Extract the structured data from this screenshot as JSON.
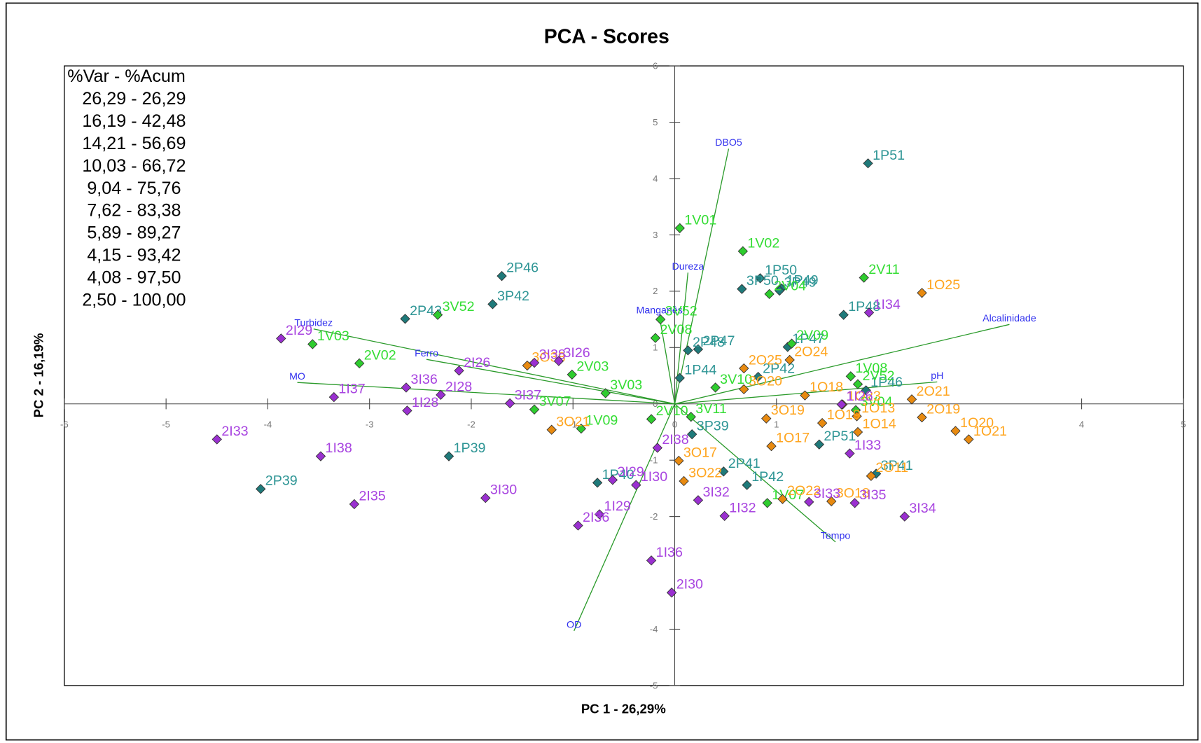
{
  "chart_data": {
    "type": "scatter",
    "title": "PCA - Scores",
    "x_label": "PC 1 - 26,29%",
    "y_label": "PC 2 - 16,19%",
    "xlim": [
      -6,
      5
    ],
    "ylim": [
      -5,
      6
    ],
    "xticks": [
      -6,
      -5,
      -4,
      -3,
      -2,
      -1,
      0,
      1,
      4,
      5
    ],
    "yticks": [
      -5,
      -4,
      -2,
      -1,
      0,
      1,
      2,
      3,
      4,
      5,
      6
    ],
    "variance_table": [
      "%Var - %Acum",
      "26,29 - 26,29",
      "16,19 - 42,48",
      "14,21 - 56,69",
      "10,03 - 66,72",
      "9,04 - 75,76",
      "7,62 - 83,38",
      "5,89 - 89,27",
      "4,15 - 93,42",
      "4,08 - 97,50",
      "2,50 - 100,00"
    ],
    "series": [
      {
        "color": "#1f7a7a",
        "label_color": "#2e9595",
        "labels": [
          "1P51",
          "2P46",
          "3P42",
          "2P43",
          "1P39",
          "2P39",
          "1P49",
          "3P49",
          "1P50",
          "3P50",
          "1P48",
          "2P47",
          "2P48",
          "1P47",
          "2P42",
          "1P44",
          "2P51",
          "3P41",
          "2P41",
          "1P42",
          "3P39",
          "1P40",
          "1P46"
        ],
        "x": [
          1.9,
          -1.7,
          -1.79,
          -2.65,
          -2.22,
          -4.07,
          1.05,
          1.03,
          0.84,
          0.66,
          1.66,
          0.23,
          0.13,
          1.11,
          0.82,
          0.05,
          1.42,
          1.98,
          0.48,
          0.71,
          0.17,
          -0.76,
          1.88
        ],
        "y": [
          4.27,
          2.27,
          1.77,
          1.51,
          -0.93,
          -1.51,
          2.05,
          2.01,
          2.23,
          2.04,
          1.58,
          0.97,
          0.95,
          1.01,
          0.48,
          0.46,
          -0.72,
          -1.24,
          -1.2,
          -1.44,
          -0.54,
          -1.4,
          0.24
        ]
      },
      {
        "color": "#2ecc2e",
        "label_color": "#33dd33",
        "labels": [
          "1V01",
          "1V02",
          "2V11",
          "3V52",
          "1V03",
          "2V02",
          "2V04",
          "3V52",
          "2V08",
          "2V09",
          "1V08",
          "2V52",
          "3V04",
          "2V03",
          "3V03",
          "3V07",
          "1V09",
          "3V11",
          "1V07",
          "3V10",
          "2V10"
        ],
        "x": [
          0.05,
          0.67,
          1.86,
          -2.33,
          -3.56,
          -3.1,
          0.93,
          -0.14,
          -0.19,
          1.15,
          1.73,
          1.8,
          1.78,
          -1.01,
          -0.68,
          -1.38,
          -0.92,
          0.16,
          0.91,
          0.4,
          -0.23
        ],
        "y": [
          3.12,
          2.71,
          2.24,
          1.58,
          1.06,
          0.72,
          1.95,
          1.5,
          1.17,
          1.07,
          0.49,
          0.35,
          -0.11,
          0.52,
          0.19,
          -0.1,
          -0.44,
          -0.23,
          -1.76,
          0.29,
          -0.27
        ]
      },
      {
        "color": "#e88a10",
        "label_color": "#ffa51f",
        "labels": [
          "1O25",
          "2O24",
          "2O25",
          "2O21",
          "2O19",
          "1O20",
          "1O21",
          "1O18",
          "1O23",
          "1O13",
          "1O14",
          "1O19",
          "1O17",
          "3O17",
          "3O22",
          "2O22",
          "3O18",
          "2O11",
          "3O20",
          "3O19",
          "3O21",
          "3O38"
        ],
        "x": [
          2.43,
          1.13,
          0.68,
          2.33,
          2.43,
          2.76,
          2.89,
          1.28,
          1.65,
          1.79,
          1.8,
          1.45,
          0.95,
          0.04,
          0.09,
          1.06,
          1.54,
          1.93,
          0.68,
          0.9,
          -1.21,
          -1.45
        ],
        "y": [
          1.97,
          0.78,
          0.63,
          0.08,
          -0.24,
          -0.48,
          -0.63,
          0.15,
          -0.01,
          -0.22,
          -0.5,
          -0.34,
          -0.75,
          -1.01,
          -1.37,
          -1.69,
          -1.73,
          -1.28,
          0.26,
          -0.26,
          -0.46,
          0.68
        ]
      },
      {
        "color": "#9a30d0",
        "label_color": "#a844e0",
        "labels": [
          "2I33",
          "1I38",
          "2I35",
          "2I29",
          "1I37",
          "3I36",
          "1I28",
          "2I28",
          "2I26",
          "3I37",
          "3I30",
          "3I38",
          "3I26",
          "3I29",
          "1I30",
          "1I29",
          "2I36",
          "1I36",
          "2I30",
          "2I38",
          "3I32",
          "1I32",
          "3I33",
          "3I35",
          "3I34",
          "1I33",
          "1I34",
          "1I26"
        ],
        "x": [
          -4.5,
          -3.48,
          -3.15,
          -3.87,
          -3.35,
          -2.64,
          -2.63,
          -2.3,
          -2.12,
          -1.62,
          -1.86,
          -1.38,
          -1.14,
          -0.61,
          -0.38,
          -0.74,
          -0.95,
          -0.23,
          -0.03,
          -0.17,
          0.23,
          0.49,
          1.32,
          1.77,
          2.26,
          1.72,
          1.91,
          1.64
        ],
        "y": [
          -0.63,
          -0.93,
          -1.78,
          1.16,
          0.12,
          0.29,
          -0.12,
          0.16,
          0.59,
          0.01,
          -1.67,
          0.73,
          0.76,
          -1.35,
          -1.44,
          -1.96,
          -2.16,
          -2.78,
          -3.35,
          -0.78,
          -1.71,
          -1.99,
          -1.74,
          -1.76,
          -2.0,
          -0.88,
          1.62,
          -0.01
        ]
      }
    ],
    "loadings": {
      "color": "#2a9a2a",
      "label_color": "#3030ee",
      "labels": [
        "DBO5",
        "Dureza",
        "Manganês",
        "Turbidez",
        "Ferro",
        "MO",
        "Alcalinidade",
        "pH",
        "Tempo",
        "OD"
      ],
      "x": [
        0.53,
        0.13,
        -0.15,
        -3.55,
        -2.44,
        -3.71,
        3.29,
        2.58,
        1.58,
        -0.99
      ],
      "y": [
        4.53,
        2.33,
        1.55,
        1.33,
        0.79,
        0.38,
        1.41,
        0.39,
        -2.45,
        -4.03
      ]
    }
  }
}
